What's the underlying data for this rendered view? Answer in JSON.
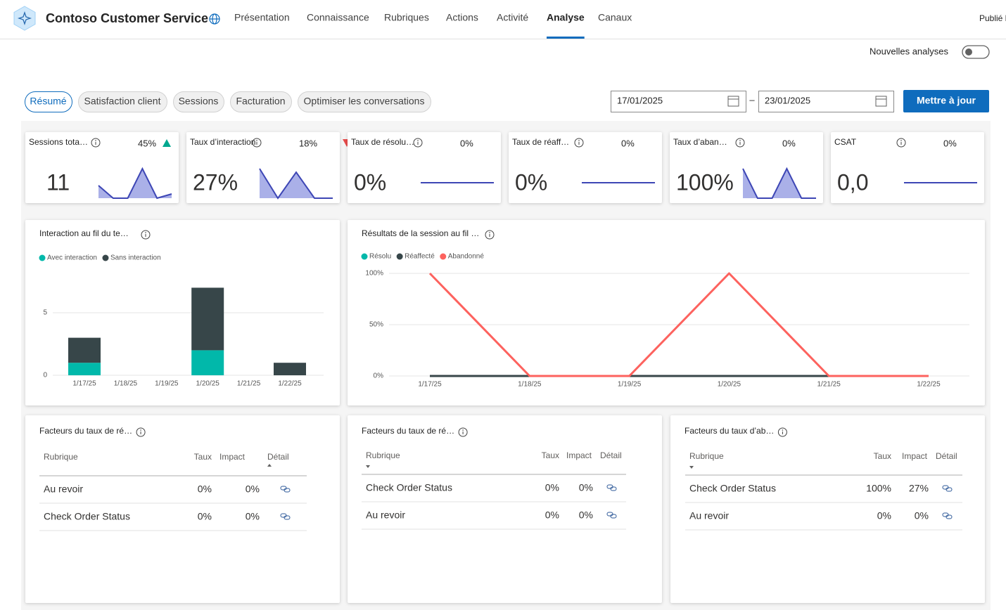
{
  "header": {
    "title": "Contoso Customer Service",
    "nav": [
      "Présentation",
      "Connaissance",
      "Rubriques",
      "Actions",
      "Activité",
      "Analyse",
      "Canaux"
    ],
    "active_nav_index": 5,
    "status": "Publié l"
  },
  "toggle_label": "Nouvelles analyses",
  "tabs": [
    "Résumé",
    "Satisfaction client",
    "Sessions",
    "Facturation",
    "Optimiser les conversations"
  ],
  "active_tab_index": 0,
  "date_from": "17/01/2025",
  "date_separator": "–",
  "date_to": "23/01/2025",
  "update_button": "Mettre à jour",
  "kpis": [
    {
      "label": "Sessions tota…",
      "value": "11",
      "change": "45%",
      "trend": "up",
      "sparkline": [
        3,
        0,
        0,
        7,
        0,
        1
      ]
    },
    {
      "label": "Taux d’interaction",
      "value": "27%",
      "change": "18%",
      "trend": "down",
      "sparkline": [
        33,
        0,
        29,
        0,
        0
      ]
    },
    {
      "label": "Taux de résolu…",
      "value": "0%",
      "change": "0%",
      "sparkline": [
        0,
        0,
        0,
        0,
        0,
        0
      ]
    },
    {
      "label": "Taux de réaff…",
      "value": "0%",
      "change": "0%",
      "sparkline": [
        0,
        0,
        0,
        0,
        0,
        0
      ]
    },
    {
      "label": "Taux d’aban…",
      "value": "100%",
      "change": "0%",
      "sparkline": [
        100,
        0,
        0,
        100,
        0,
        0
      ]
    },
    {
      "label": "CSAT",
      "value": "0,0",
      "change": "0%",
      "sparkline": [
        0,
        0,
        0,
        0,
        0,
        0
      ]
    }
  ],
  "interaction_chart": {
    "type": "bar",
    "stacked": true,
    "title": "Interaction au fil du te…",
    "categories": [
      "1/17/25",
      "1/18/25",
      "1/19/25",
      "1/20/25",
      "1/21/25",
      "1/22/25"
    ],
    "series": [
      {
        "name": "Avec interaction",
        "color": "#01b8aa",
        "values": [
          1,
          0,
          0,
          2,
          0,
          0
        ]
      },
      {
        "name": "Sans interaction",
        "color": "#374649",
        "values": [
          2,
          0,
          0,
          5,
          0,
          1
        ]
      }
    ],
    "ylim": [
      0,
      8
    ],
    "yticks": [
      0,
      5
    ],
    "grid": true
  },
  "outcome_chart": {
    "type": "line",
    "title": "Résultats de la session au fil …",
    "categories": [
      "1/17/25",
      "1/18/25",
      "1/19/25",
      "1/20/25",
      "1/21/25",
      "1/22/25"
    ],
    "series": [
      {
        "name": "Résolu",
        "color": "#01b8aa",
        "values": [
          0,
          0,
          0,
          0,
          0,
          0
        ]
      },
      {
        "name": "Réaffecté",
        "color": "#374649",
        "values": [
          0,
          0,
          0,
          0,
          0,
          0
        ]
      },
      {
        "name": "Abandonné",
        "color": "#fd625e",
        "values": [
          100,
          0,
          0,
          100,
          0,
          0
        ]
      }
    ],
    "ylim": [
      0,
      100
    ],
    "yticks": [
      {
        "value": 0,
        "label": "0%"
      },
      {
        "value": 50,
        "label": "50%"
      },
      {
        "value": 100,
        "label": "100%"
      }
    ],
    "grid": true
  },
  "driver_tables": [
    {
      "title": "Facteurs du taux de ré…",
      "columns": [
        "Rubrique",
        "Taux",
        "Impact",
        "Détail"
      ],
      "rows": [
        [
          "Au revoir",
          "0%",
          "0%"
        ],
        [
          "Check Order Status",
          "0%",
          "0%"
        ]
      ]
    },
    {
      "title": "Facteurs du taux de ré…",
      "columns": [
        "Rubrique",
        "Taux",
        "Impact",
        "Détail"
      ],
      "rows": [
        [
          "Check Order Status",
          "0%",
          "0%"
        ],
        [
          "Au revoir",
          "0%",
          "0%"
        ]
      ]
    },
    {
      "title": "Facteurs du taux d’ab…",
      "columns": [
        "Rubrique",
        "Taux",
        "Impact",
        "Détail"
      ],
      "rows": [
        [
          "Check Order Status",
          "100%",
          "27%"
        ],
        [
          "Au revoir",
          "0%",
          "0%"
        ]
      ]
    }
  ]
}
